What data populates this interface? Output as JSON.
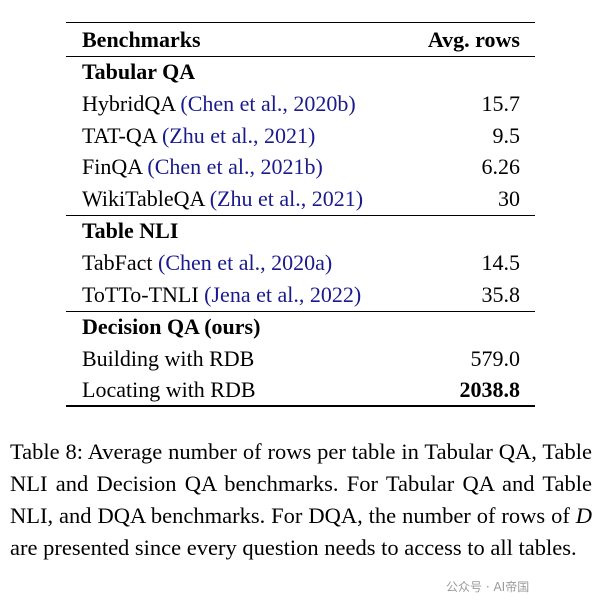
{
  "table": {
    "header": [
      "Benchmarks",
      "Avg. rows"
    ],
    "sections": [
      {
        "title": "Tabular QA",
        "rows": [
          {
            "name": "HybridQA",
            "cite": "(Chen et al., 2020b)",
            "value": "15.7"
          },
          {
            "name": "TAT-QA",
            "cite": "(Zhu et al., 2021)",
            "value": "9.5"
          },
          {
            "name": "FinQA",
            "cite": "(Chen et al., 2021b)",
            "value": "6.26"
          },
          {
            "name": "WikiTableQA",
            "cite": "(Zhu et al., 2021)",
            "value": "30"
          }
        ]
      },
      {
        "title": "Table NLI",
        "rows": [
          {
            "name": "TabFact",
            "cite": "(Chen et al., 2020a)",
            "value": "14.5"
          },
          {
            "name": "ToTTo-TNLI",
            "cite": "(Jena et al., 2022)",
            "value": "35.8"
          }
        ]
      },
      {
        "title": "Decision QA (ours)",
        "rows": [
          {
            "name": "Building with RDB",
            "value": "579.0"
          },
          {
            "name": "Locating with RDB",
            "value": "2038.8",
            "bold": true
          }
        ]
      }
    ]
  },
  "caption": {
    "before": "Table 8: Average number of rows per table in Tabular QA, Table NLI and Decision QA benchmarks.  For Tabular QA and Table NLI, and DQA benchmarks. For DQA, the number of rows of ",
    "symbol": "D",
    "after": " are presented since every question needs to access to all tables."
  },
  "watermark": "公众号 · AI帝国"
}
